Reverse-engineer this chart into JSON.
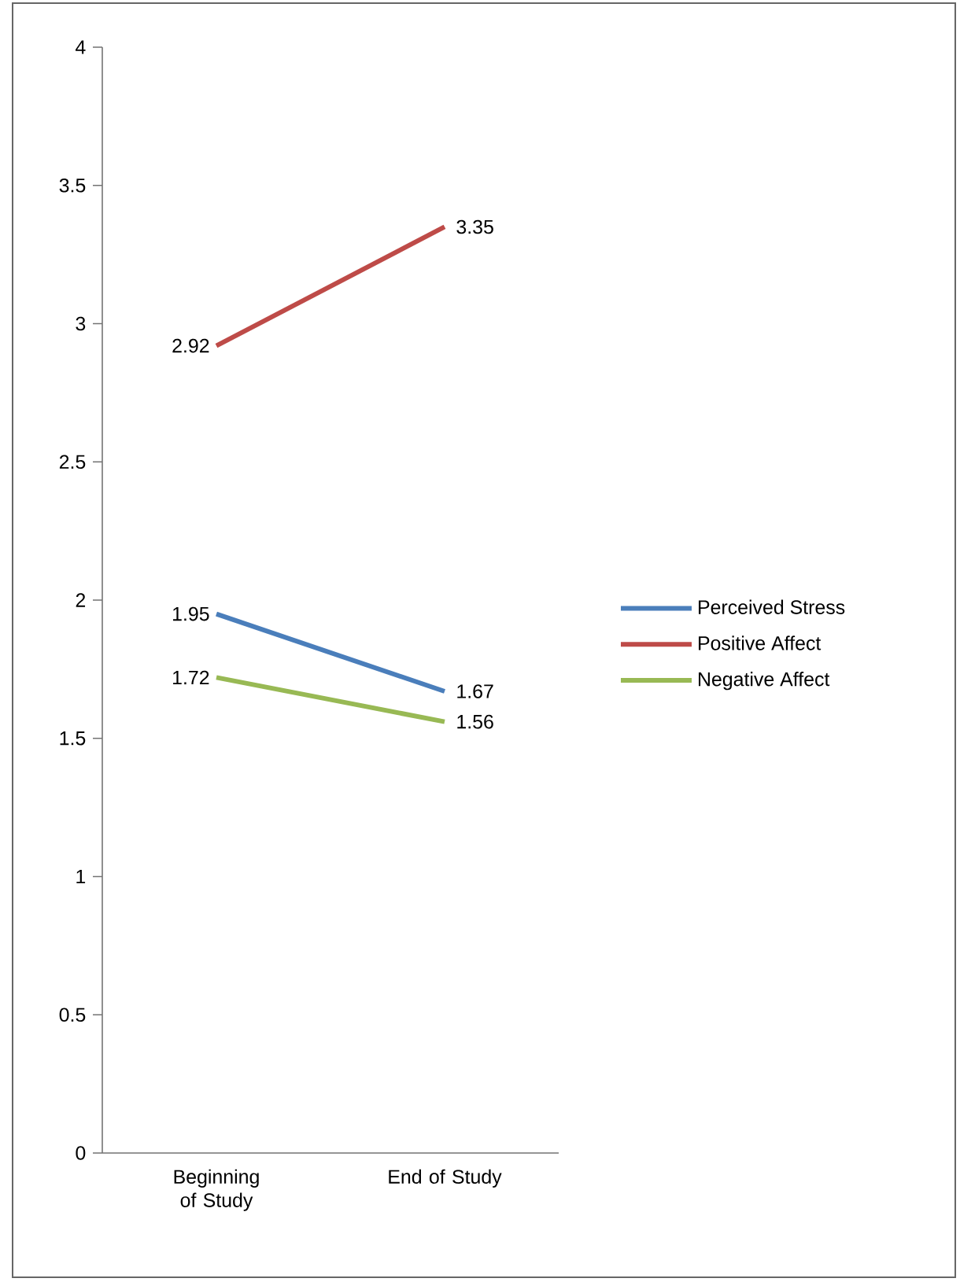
{
  "chart_data": {
    "type": "line",
    "categories": [
      "Beginning of Study",
      "End of Study"
    ],
    "series": [
      {
        "name": "Perceived Stress",
        "color": "#4a7ebb",
        "values": [
          1.95,
          1.67
        ]
      },
      {
        "name": "Positive Affect",
        "color": "#be4b48",
        "values": [
          2.92,
          3.35
        ]
      },
      {
        "name": "Negative Affect",
        "color": "#98b954",
        "values": [
          1.72,
          1.56
        ]
      }
    ],
    "ylim": [
      0,
      4
    ],
    "yticks": [
      0,
      0.5,
      1,
      1.5,
      2,
      2.5,
      3,
      3.5,
      4
    ],
    "data_labels": true,
    "legend": "right",
    "marker": "none",
    "line_style": "solid",
    "grid": false
  }
}
